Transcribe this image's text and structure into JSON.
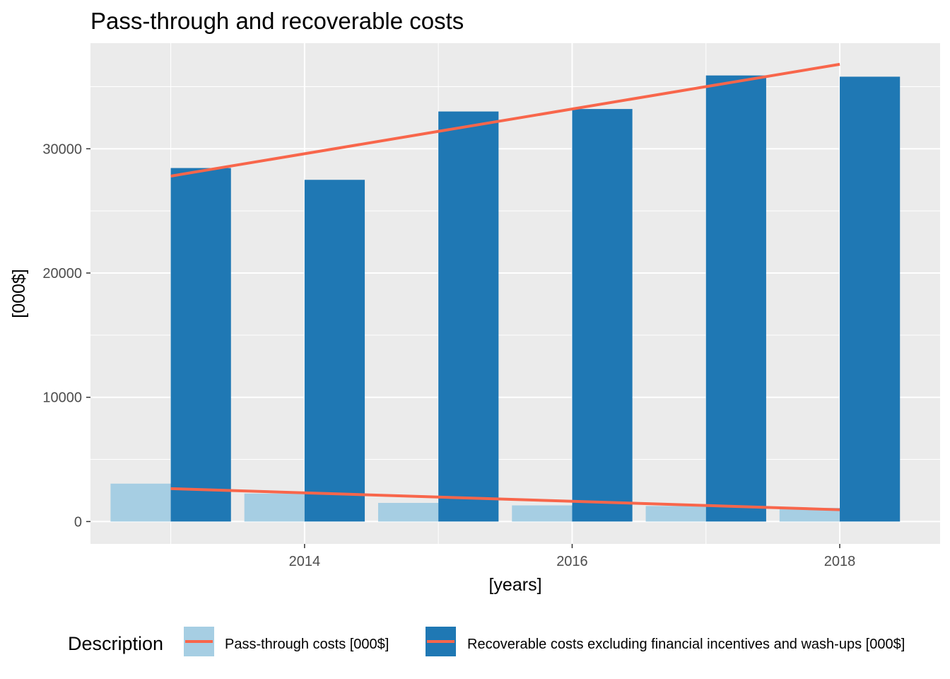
{
  "chart_data": {
    "type": "bar",
    "title": "Pass-through and recoverable costs",
    "xlabel": "[years]",
    "ylabel": "[000$]",
    "x": [
      2013,
      2014,
      2015,
      2016,
      2017,
      2018
    ],
    "x_ticks": [
      2014,
      2016,
      2018
    ],
    "y_ticks": [
      0,
      10000,
      20000,
      30000
    ],
    "xlim": [
      2012.4,
      2018.75
    ],
    "ylim": [
      -1800,
      38500
    ],
    "grid": true,
    "legend": {
      "title": "Description",
      "position": "bottom"
    },
    "series": [
      {
        "name": "Pass-through costs [000$]",
        "values": [
          3050,
          2250,
          1500,
          1300,
          1250,
          1100
        ],
        "color": "#a6cee3"
      },
      {
        "name": "Recoverable costs excluding financial incentives and wash-ups [000$]",
        "values": [
          28450,
          27500,
          33000,
          33200,
          35900,
          35800
        ],
        "color": "#1f78b4"
      }
    ],
    "trend_lines": [
      {
        "series": "Pass-through costs [000$]",
        "x": [
          2013,
          2018
        ],
        "y": [
          2650,
          950
        ],
        "color": "#f8664b"
      },
      {
        "series": "Recoverable costs excluding financial incentives and wash-ups [000$]",
        "x": [
          2013,
          2018
        ],
        "y": [
          27800,
          36800
        ],
        "color": "#f8664b"
      }
    ],
    "colors": {
      "panel_bg": "#ebebeb",
      "grid": "#ffffff",
      "trend": "#f8664b"
    }
  }
}
